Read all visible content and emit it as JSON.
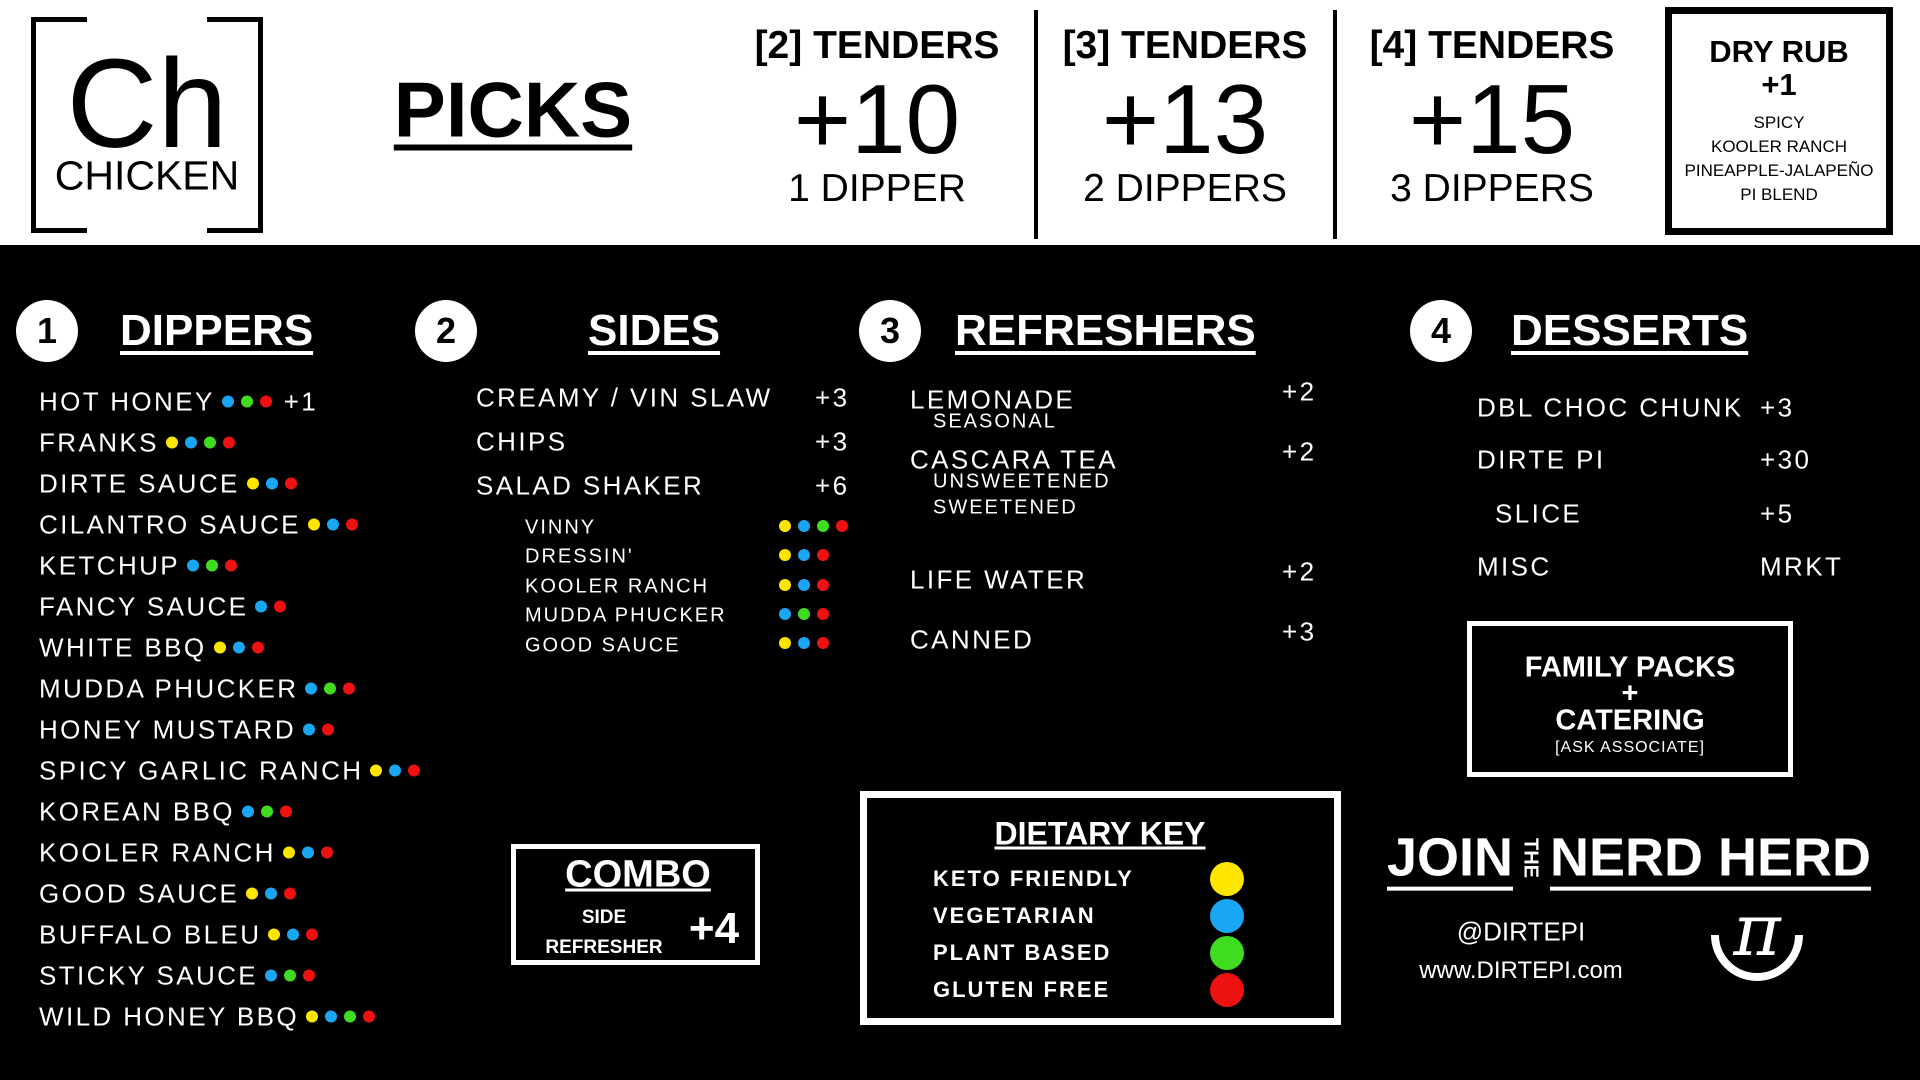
{
  "colors": {
    "keto": "#ffe600",
    "vegetarian": "#1aa6f2",
    "plant": "#3fdc1f",
    "gluten": "#ee1111"
  },
  "logo": {
    "symbol": "Ch",
    "name": "CHICKEN"
  },
  "header": {
    "title": "PICKS",
    "picks": [
      {
        "title": "[2] TENDERS",
        "price": "+10",
        "dippers": "1 DIPPER"
      },
      {
        "title": "[3] TENDERS",
        "price": "+13",
        "dippers": "2 DIPPERS"
      },
      {
        "title": "[4] TENDERS",
        "price": "+15",
        "dippers": "3 DIPPERS"
      }
    ],
    "dry_rub": {
      "title": "DRY RUB",
      "price": "+1",
      "options": [
        "SPICY",
        "KOOLER RANCH",
        "PINEAPPLE-JALAPEÑO",
        "PI BLEND"
      ]
    }
  },
  "dippers": {
    "number": "1",
    "title": "DIPPERS",
    "items": [
      {
        "name": "HOT HONEY",
        "dots": [
          "vegetarian",
          "plant",
          "gluten"
        ],
        "price": "+1"
      },
      {
        "name": "FRANKS",
        "dots": [
          "keto",
          "vegetarian",
          "plant",
          "gluten"
        ]
      },
      {
        "name": "DIRTE SAUCE",
        "dots": [
          "keto",
          "vegetarian",
          "gluten"
        ]
      },
      {
        "name": "CILANTRO SAUCE",
        "dots": [
          "keto",
          "vegetarian",
          "gluten"
        ]
      },
      {
        "name": "KETCHUP",
        "dots": [
          "vegetarian",
          "plant",
          "gluten"
        ]
      },
      {
        "name": "FANCY SAUCE",
        "dots": [
          "vegetarian",
          "gluten"
        ]
      },
      {
        "name": "WHITE BBQ",
        "dots": [
          "keto",
          "vegetarian",
          "gluten"
        ]
      },
      {
        "name": "MUDDA PHUCKER",
        "dots": [
          "vegetarian",
          "plant",
          "gluten"
        ]
      },
      {
        "name": "HONEY MUSTARD",
        "dots": [
          "vegetarian",
          "gluten"
        ]
      },
      {
        "name": "SPICY GARLIC RANCH",
        "dots": [
          "keto",
          "vegetarian",
          "gluten"
        ]
      },
      {
        "name": "KOREAN BBQ",
        "dots": [
          "vegetarian",
          "plant",
          "gluten"
        ]
      },
      {
        "name": "KOOLER RANCH",
        "dots": [
          "keto",
          "vegetarian",
          "gluten"
        ]
      },
      {
        "name": "GOOD SAUCE",
        "dots": [
          "keto",
          "vegetarian",
          "gluten"
        ]
      },
      {
        "name": "BUFFALO BLEU",
        "dots": [
          "keto",
          "vegetarian",
          "gluten"
        ]
      },
      {
        "name": "STICKY SAUCE",
        "dots": [
          "vegetarian",
          "plant",
          "gluten"
        ]
      },
      {
        "name": "WILD HONEY BBQ",
        "dots": [
          "keto",
          "vegetarian",
          "plant",
          "gluten"
        ]
      }
    ]
  },
  "sides": {
    "number": "2",
    "title": "SIDES",
    "items": [
      {
        "name": "CREAMY / VIN SLAW",
        "price": "+3"
      },
      {
        "name": "CHIPS",
        "price": "+3"
      },
      {
        "name": "SALAD SHAKER",
        "price": "+6"
      }
    ],
    "dressings": [
      {
        "name": "VINNY",
        "dots": [
          "keto",
          "vegetarian",
          "plant",
          "gluten"
        ]
      },
      {
        "name": "DRESSIN'",
        "dots": [
          "keto",
          "vegetarian",
          "gluten"
        ]
      },
      {
        "name": "KOOLER RANCH",
        "dots": [
          "keto",
          "vegetarian",
          "gluten"
        ]
      },
      {
        "name": "MUDDA PHUCKER",
        "dots": [
          "vegetarian",
          "plant",
          "gluten"
        ]
      },
      {
        "name": "GOOD SAUCE",
        "dots": [
          "keto",
          "vegetarian",
          "gluten"
        ]
      }
    ]
  },
  "refreshers": {
    "number": "3",
    "title": "REFRESHERS",
    "items": [
      {
        "name": "LEMONADE",
        "notes": [
          "SEASONAL"
        ],
        "price": "+2"
      },
      {
        "name": "CASCARA TEA",
        "notes": [
          "UNSWEETENED",
          "SWEETENED"
        ],
        "price": "+2"
      },
      {
        "name": "LIFE WATER",
        "notes": [],
        "price": "+2"
      },
      {
        "name": "CANNED",
        "notes": [],
        "price": "+3"
      }
    ]
  },
  "desserts": {
    "number": "4",
    "title": "DESSERTS",
    "items": [
      {
        "name": "DBL CHOC CHUNK",
        "price": "+3"
      },
      {
        "name": "DIRTE PI",
        "price": "+30"
      },
      {
        "name": "SLICE",
        "price": "+5"
      },
      {
        "name": "MISC",
        "price": "MRKT"
      }
    ]
  },
  "family": {
    "line1": "FAMILY PACKS",
    "plus": "+",
    "line2": "CATERING",
    "note": "[ASK ASSOCIATE]"
  },
  "combo": {
    "title": "COMBO",
    "line1": "SIDE",
    "line2": "REFRESHER",
    "price": "+4"
  },
  "dietary": {
    "title": "DIETARY KEY",
    "items": [
      {
        "label": "KETO FRIENDLY",
        "key": "keto"
      },
      {
        "label": "VEGETARIAN",
        "key": "vegetarian"
      },
      {
        "label": "PLANT BASED",
        "key": "plant"
      },
      {
        "label": "GLUTEN FREE",
        "key": "gluten"
      }
    ]
  },
  "join": {
    "join": "JOIN",
    "the": "THE",
    "nerd": "NERD HERD",
    "handle": "@DIRTEPI",
    "website": "www.DIRTEPI.com"
  }
}
